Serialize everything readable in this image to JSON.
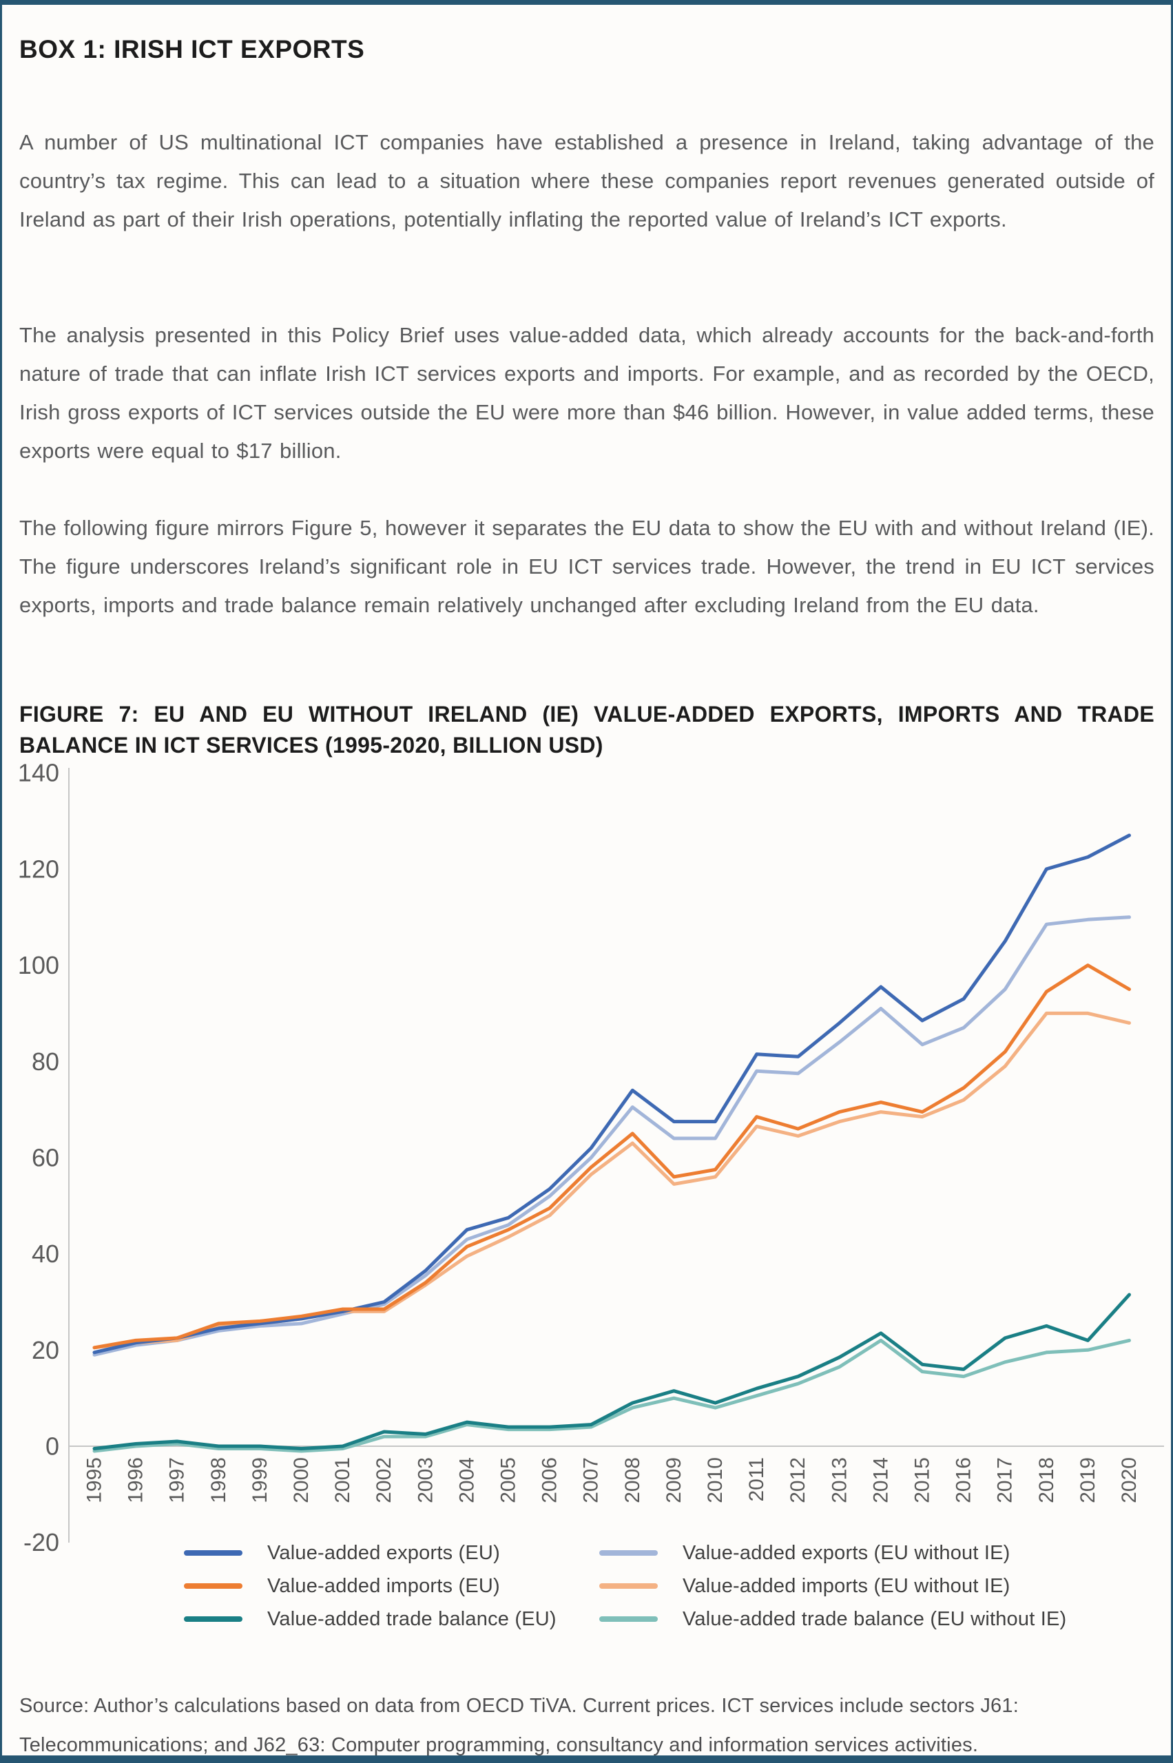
{
  "page": {
    "box_title": "BOX 1: IRISH ICT EXPORTS",
    "paragraphs": [
      "A number of US multinational ICT companies have established a presence in Ireland, taking advantage of the country’s tax regime. This can lead to a situation where these companies report revenues generated outside of Ireland as part of their Irish operations, potentially inflating the reported value of Ireland’s ICT exports.",
      "The analysis presented in this Policy Brief uses value-added data, which already accounts for the back-and-forth nature of trade that can inflate Irish ICT services exports and imports. For example, and as recorded by the OECD, Irish gross exports of ICT services outside the EU were more than $46 billion. However, in value added terms, these exports were equal to $17 billion.",
      "The following figure mirrors Figure 5, however it separates the EU data to show the EU with and without Ireland (IE). The figure underscores Ireland’s significant role in EU ICT services trade. However, the trend in EU ICT services exports, imports and trade balance remain relatively unchanged after excluding Ireland from the EU data."
    ],
    "figure_title": "FIGURE 7: EU AND EU WITHOUT IRELAND (IE) VALUE-ADDED EXPORTS, IMPORTS AND TRADE BALANCE IN ICT SERVICES (1995-2020, BILLION USD)",
    "source": "Source: Author’s calculations based on data from OECD TiVA. Current prices. ICT services include sectors J61: Telecommunications; and J62_63: Computer programming, consultancy and information services activities.",
    "colors": {
      "border": "#265672",
      "axis_line": "#c6c6c6",
      "axis_label": "#5a5a5a"
    }
  },
  "chart_data": {
    "type": "line",
    "title": "FIGURE 7: EU AND EU WITHOUT IRELAND (IE) VALUE-ADDED EXPORTS, IMPORTS AND TRADE BALANCE IN ICT SERVICES (1995-2020, BILLION USD)",
    "xlabel": "",
    "ylabel": "",
    "grid": false,
    "legend_position": "bottom",
    "ylim": [
      -20,
      140
    ],
    "yticks": [
      140,
      120,
      100,
      80,
      60,
      40,
      20,
      0,
      -20
    ],
    "x": [
      1995,
      1996,
      1997,
      1998,
      1999,
      2000,
      2001,
      2002,
      2003,
      2004,
      2005,
      2006,
      2007,
      2008,
      2009,
      2010,
      2011,
      2012,
      2013,
      2014,
      2015,
      2016,
      2017,
      2018,
      2019,
      2020
    ],
    "series": [
      {
        "name": "Value-added exports (EU)",
        "color": "#3E69B3",
        "values": [
          19.5,
          21.5,
          22.5,
          24.5,
          25.5,
          26.5,
          28,
          30,
          36.5,
          45,
          47.5,
          53.5,
          62,
          74,
          67.5,
          67.5,
          81.5,
          81,
          88,
          95.5,
          88.5,
          93,
          105,
          120,
          122.5,
          127
        ]
      },
      {
        "name": "Value-added exports (EU without IE)",
        "color": "#A2B5D9",
        "values": [
          19,
          21,
          22,
          24,
          25,
          25.5,
          27.5,
          29.5,
          35.5,
          43,
          46,
          52,
          60,
          70.5,
          64,
          64,
          78,
          77.5,
          84,
          91,
          83.5,
          87,
          95,
          108.5,
          109.5,
          110
        ]
      },
      {
        "name": "Value-added imports (EU)",
        "color": "#ED7D31",
        "values": [
          20.5,
          22,
          22.5,
          25.5,
          26,
          27,
          28.5,
          28.5,
          34,
          41.5,
          45,
          49.5,
          58,
          65,
          56,
          57.5,
          68.5,
          66,
          69.5,
          71.5,
          69.5,
          74.5,
          82,
          94.5,
          100,
          95
        ]
      },
      {
        "name": "Value-added imports (EU without IE)",
        "color": "#F4B183",
        "values": [
          20.5,
          21.5,
          22,
          25,
          25.5,
          26.5,
          28,
          28,
          33.5,
          39.5,
          43.5,
          48,
          56.5,
          63,
          54.5,
          56,
          66.5,
          64.5,
          67.5,
          69.5,
          68.5,
          72,
          79,
          90,
          90,
          88
        ]
      },
      {
        "name": "Value-added trade balance (EU)",
        "color": "#1A7F85",
        "values": [
          -0.5,
          0.5,
          1,
          0,
          0,
          -0.5,
          0,
          3,
          2.5,
          5,
          4,
          4,
          4.5,
          9,
          11.5,
          9,
          12,
          14.5,
          18.5,
          23.5,
          17,
          16,
          22.5,
          25,
          22,
          31.5
        ]
      },
      {
        "name": "Value-added trade balance (EU without IE)",
        "color": "#7FBFB9",
        "values": [
          -1,
          0,
          0.5,
          -0.5,
          -0.5,
          -1,
          -0.5,
          2,
          2,
          4.5,
          3.5,
          3.5,
          4,
          8,
          10,
          8,
          10.5,
          13,
          16.5,
          22,
          15.5,
          14.5,
          17.5,
          19.5,
          20,
          22
        ]
      }
    ]
  }
}
